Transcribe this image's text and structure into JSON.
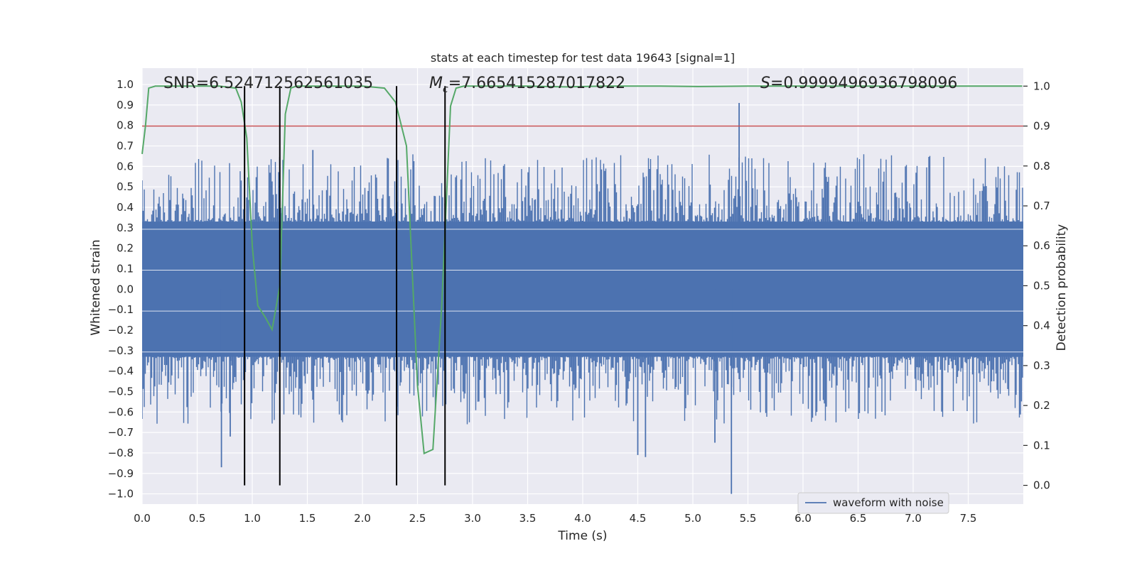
{
  "chart_data": {
    "type": "line",
    "title": "stats at each timestep for test data 19643 [signal=1]",
    "xlabel": "Time (s)",
    "ylabel": "Whitened strain",
    "y2label": "Detection probability",
    "xlim": [
      0.0,
      8.0
    ],
    "ylim": [
      -1.05,
      1.08
    ],
    "y2lim": [
      -0.047,
      1.045
    ],
    "xticks": [
      "0.0",
      "0.5",
      "1.0",
      "1.5",
      "2.0",
      "2.5",
      "3.0",
      "3.5",
      "4.0",
      "4.5",
      "5.0",
      "5.5",
      "6.0",
      "6.5",
      "7.0",
      "7.5"
    ],
    "yticks": [
      "1.0",
      "0.9",
      "0.8",
      "0.7",
      "0.6",
      "0.5",
      "0.4",
      "0.3",
      "0.2",
      "0.1",
      "0.0",
      "−0.1",
      "−0.2",
      "−0.3",
      "−0.4",
      "−0.5",
      "−0.6",
      "−0.7",
      "−0.8",
      "−0.9",
      "−1.0"
    ],
    "y2ticks": [
      "1.0",
      "0.9",
      "0.8",
      "0.7",
      "0.6",
      "0.5",
      "0.4",
      "0.3",
      "0.2",
      "0.1",
      "0.0"
    ],
    "annotations": {
      "snr": "SNR=6.524712562561035",
      "mc_symbol": "M",
      "mc_sub": "c",
      "mc_value": "=7.665415287017822",
      "s_symbol": "S",
      "s_value": "=0.9999496936798096"
    },
    "threshold": 0.9,
    "vlines": [
      0.93,
      1.25,
      2.31,
      2.75
    ],
    "series": [
      {
        "name": "waveform with noise",
        "color": "#4c72b0",
        "axis": "left",
        "description": "whitened strain, dense noise band",
        "band_upper": 0.33,
        "band_lower": -0.33,
        "spikes": [
          {
            "x": 0.72,
            "y": -0.87
          },
          {
            "x": 2.31,
            "y": 0.93
          },
          {
            "x": 5.35,
            "y": -1.0
          },
          {
            "x": 5.42,
            "y": 0.91
          },
          {
            "x": 4.5,
            "y": -0.81
          },
          {
            "x": 4.57,
            "y": -0.82
          },
          {
            "x": 5.2,
            "y": -0.75
          },
          {
            "x": 0.8,
            "y": -0.72
          },
          {
            "x": 1.55,
            "y": 0.68
          }
        ]
      },
      {
        "name": "detection probability",
        "color": "#55a868",
        "axis": "right",
        "x": [
          0.0,
          0.03,
          0.06,
          0.12,
          0.3,
          0.5,
          0.7,
          0.85,
          0.9,
          0.95,
          1.0,
          1.05,
          1.12,
          1.18,
          1.25,
          1.3,
          1.35,
          1.4,
          1.6,
          1.8,
          2.0,
          2.2,
          2.3,
          2.4,
          2.5,
          2.56,
          2.64,
          2.72,
          2.8,
          2.85,
          2.92,
          3.0,
          3.2,
          3.5,
          3.85,
          4.2,
          4.7,
          5.05,
          5.5,
          6.0,
          6.5,
          7.0,
          7.5,
          7.99
        ],
        "y": [
          0.83,
          0.9,
          0.995,
          1.0,
          1.0,
          1.0,
          1.0,
          0.995,
          0.96,
          0.87,
          0.6,
          0.45,
          0.42,
          0.39,
          0.5,
          0.93,
          0.995,
          1.0,
          1.0,
          1.0,
          1.0,
          0.995,
          0.96,
          0.85,
          0.25,
          0.08,
          0.09,
          0.45,
          0.95,
          0.995,
          1.0,
          1.0,
          1.0,
          1.0,
          0.998,
          1.0,
          1.0,
          0.999,
          1.0,
          1.0,
          1.0,
          1.0,
          1.0,
          1.0
        ]
      },
      {
        "name": "threshold",
        "color": "#c44e52",
        "axis": "right",
        "y": [
          0.9
        ]
      }
    ],
    "legend": {
      "label": "waveform with noise",
      "placement": "lower-right"
    },
    "colors": {
      "background": "#eaeaf2",
      "grid": "#ffffff",
      "waveform": "#4c72b0",
      "probability": "#55a868",
      "threshold": "#c44e52",
      "vline": "#000000"
    }
  }
}
